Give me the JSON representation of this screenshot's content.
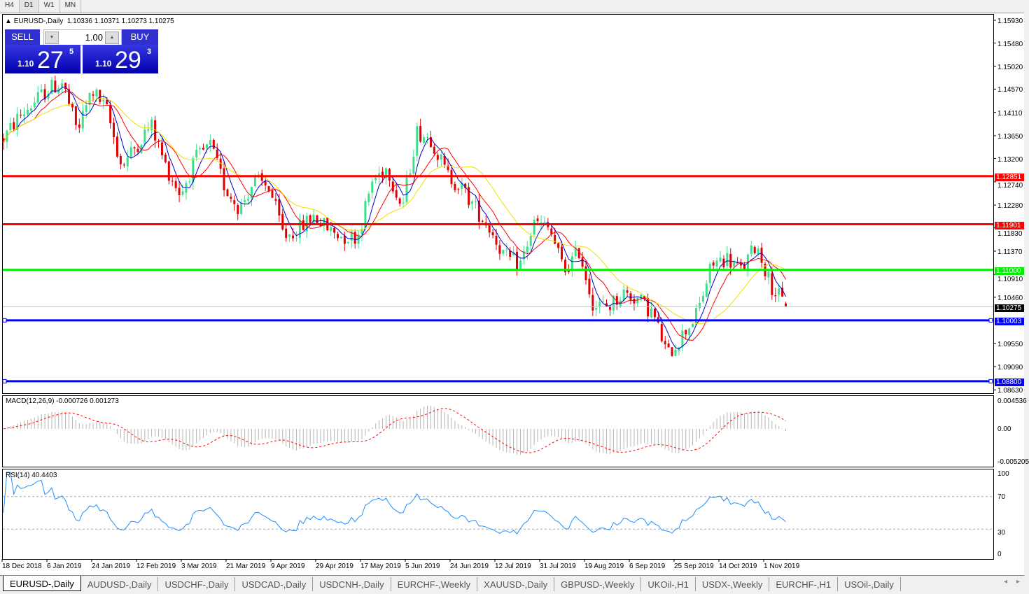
{
  "timeframes": [
    "H4",
    "D1",
    "W1",
    "MN"
  ],
  "active_timeframe": "D1",
  "header": {
    "symbol": "EURUSD-,Daily",
    "ohlc": "1.10336 1.10371 1.10273 1.10275"
  },
  "trade_panel": {
    "sell_label": "SELL",
    "buy_label": "BUY",
    "volume": "1.00",
    "sell_big": "1.10",
    "sell_main": "27",
    "sell_pip": "5",
    "buy_big": "1.10",
    "buy_main": "29",
    "buy_pip": "3"
  },
  "price_axis": [
    "1.15930",
    "1.15480",
    "1.15020",
    "1.14570",
    "1.14110",
    "1.13650",
    "1.13200",
    "1.12740",
    "1.12280",
    "1.11830",
    "1.11370",
    "1.10910",
    "1.10460",
    "1.09550",
    "1.09090",
    "1.08630"
  ],
  "levels": [
    {
      "price": 1.12851,
      "label": "1.12851",
      "color": "#ff0000"
    },
    {
      "price": 1.11901,
      "label": "1.11901",
      "color": "#ff0000"
    },
    {
      "price": 1.11,
      "label": "1.11000",
      "color": "#00ee00"
    },
    {
      "price": 1.10003,
      "label": "1.10003",
      "color": "#0000ff"
    },
    {
      "price": 1.088,
      "label": "1.08800",
      "color": "#0000ff"
    }
  ],
  "current_price": {
    "price": 1.10275,
    "label": "1.10275"
  },
  "chart_data": {
    "type": "candlestick",
    "symbol": "EURUSD-",
    "timeframe": "Daily",
    "ylim": [
      1.0852,
      1.162
    ],
    "approx_close_path": [
      1.1359,
      1.1401,
      1.1429,
      1.1456,
      1.147,
      1.1373,
      1.1456,
      1.1415,
      1.1304,
      1.1346,
      1.1387,
      1.1304,
      1.1249,
      1.1318,
      1.1346,
      1.1263,
      1.1221,
      1.1277,
      1.1263,
      1.1166,
      1.118,
      1.1207,
      1.118,
      1.1166,
      1.1166,
      1.1277,
      1.1304,
      1.1221,
      1.1373,
      1.1359,
      1.129,
      1.1263,
      1.1221,
      1.118,
      1.1124,
      1.1111,
      1.1194,
      1.118,
      1.1097,
      1.1138,
      1.1028,
      1.1028,
      1.1055,
      1.1042,
      1.1014,
      1.0931,
      1.0972,
      1.1014,
      1.1111,
      1.1124,
      1.1097,
      1.1152,
      1.1069,
      1.1028
    ],
    "last_bar": {
      "open": 1.10336,
      "high": 1.10371,
      "low": 1.10273,
      "close": 1.10275
    },
    "date_labels": [
      "18 Dec 2018",
      "6 Jan 2019",
      "24 Jan 2019",
      "12 Feb 2019",
      "3 Mar 2019",
      "21 Mar 2019",
      "9 Apr 2019",
      "29 Apr 2019",
      "17 May 2019",
      "5 Jun 2019",
      "24 Jun 2019",
      "12 Jul 2019",
      "31 Jul 2019",
      "19 Aug 2019",
      "6 Sep 2019",
      "25 Sep 2019",
      "14 Oct 2019",
      "1 Nov 2019"
    ],
    "colors": {
      "bull": "#3ce08c",
      "bear": "#e00000",
      "ma_fast": "#0000cc",
      "ma_mid": "#ff0000",
      "ma_slow": "#ffff00"
    }
  },
  "macd": {
    "label": "MACD(12,26,9) -0.000726 0.001273",
    "axis": [
      "0.004536",
      "0.00",
      "-0.005205"
    ],
    "max": 0.004536,
    "min": -0.005205
  },
  "rsi": {
    "label": "RSI(14) 40.4403",
    "axis": [
      "100",
      "70",
      "30",
      "0"
    ],
    "levels": [
      70,
      30
    ],
    "color": "#1e90ff"
  },
  "tabs": [
    "EURUSD-,Daily",
    "AUDUSD-,Daily",
    "USDCHF-,Daily",
    "USDCAD-,Daily",
    "USDCNH-,Daily",
    "EURCHF-,Weekly",
    "XAUUSD-,Daily",
    "GBPUSD-,Weekly",
    "UKOil-,H1",
    "USDX-,Weekly",
    "EURCHF-,H1",
    "USOil-,Daily"
  ],
  "scroll": {
    "left": "◂",
    "right": "▸"
  }
}
